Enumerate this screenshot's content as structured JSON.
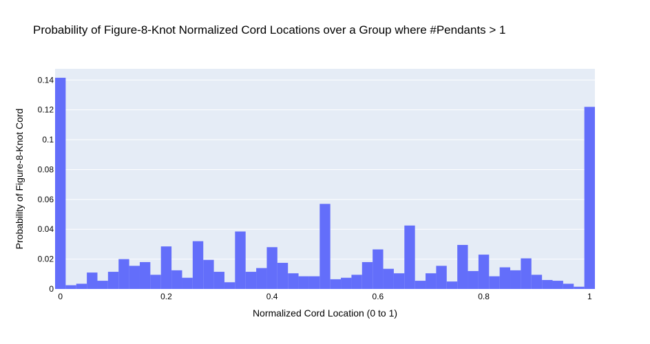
{
  "chart_data": {
    "type": "bar",
    "title": "Probability of Figure-8-Knot Normalized Cord Locations over a Group where #Pendants > 1",
    "xlabel": "Normalized Cord Location (0 to 1)",
    "ylabel": "Probability of Figure-8-Knot Cord",
    "xlim": [
      0,
      1
    ],
    "ylim": [
      0,
      0.1475
    ],
    "x_ticks": [
      {
        "value": 0,
        "label": "0"
      },
      {
        "value": 0.2,
        "label": "0.2"
      },
      {
        "value": 0.4,
        "label": "0.4"
      },
      {
        "value": 0.6,
        "label": "0.6"
      },
      {
        "value": 0.8,
        "label": "0.8"
      },
      {
        "value": 1,
        "label": "1"
      }
    ],
    "y_ticks": [
      {
        "value": 0,
        "label": "0"
      },
      {
        "value": 0.02,
        "label": "0.02"
      },
      {
        "value": 0.04,
        "label": "0.04"
      },
      {
        "value": 0.06,
        "label": "0.06"
      },
      {
        "value": 0.08,
        "label": "0.08"
      },
      {
        "value": 0.1,
        "label": "0.1"
      },
      {
        "value": 0.12,
        "label": "0.12"
      },
      {
        "value": 0.14,
        "label": "0.14"
      }
    ],
    "grid": true,
    "bar_color": "#636efa",
    "plot_bg": "#e5ecf6",
    "bin_width": 0.02,
    "values": [
      0.1415,
      0.0025,
      0.0035,
      0.011,
      0.0055,
      0.0115,
      0.02,
      0.0155,
      0.018,
      0.0095,
      0.0285,
      0.0125,
      0.0075,
      0.032,
      0.0195,
      0.0115,
      0.0045,
      0.0385,
      0.0115,
      0.014,
      0.028,
      0.0175,
      0.0105,
      0.0085,
      0.0085,
      0.057,
      0.0065,
      0.0075,
      0.0095,
      0.018,
      0.0265,
      0.0135,
      0.0105,
      0.0425,
      0.0055,
      0.0105,
      0.0155,
      0.005,
      0.0295,
      0.012,
      0.023,
      0.0085,
      0.0145,
      0.0125,
      0.0205,
      0.0095,
      0.006,
      0.0055,
      0.0035,
      0.0015,
      0.122
    ]
  }
}
